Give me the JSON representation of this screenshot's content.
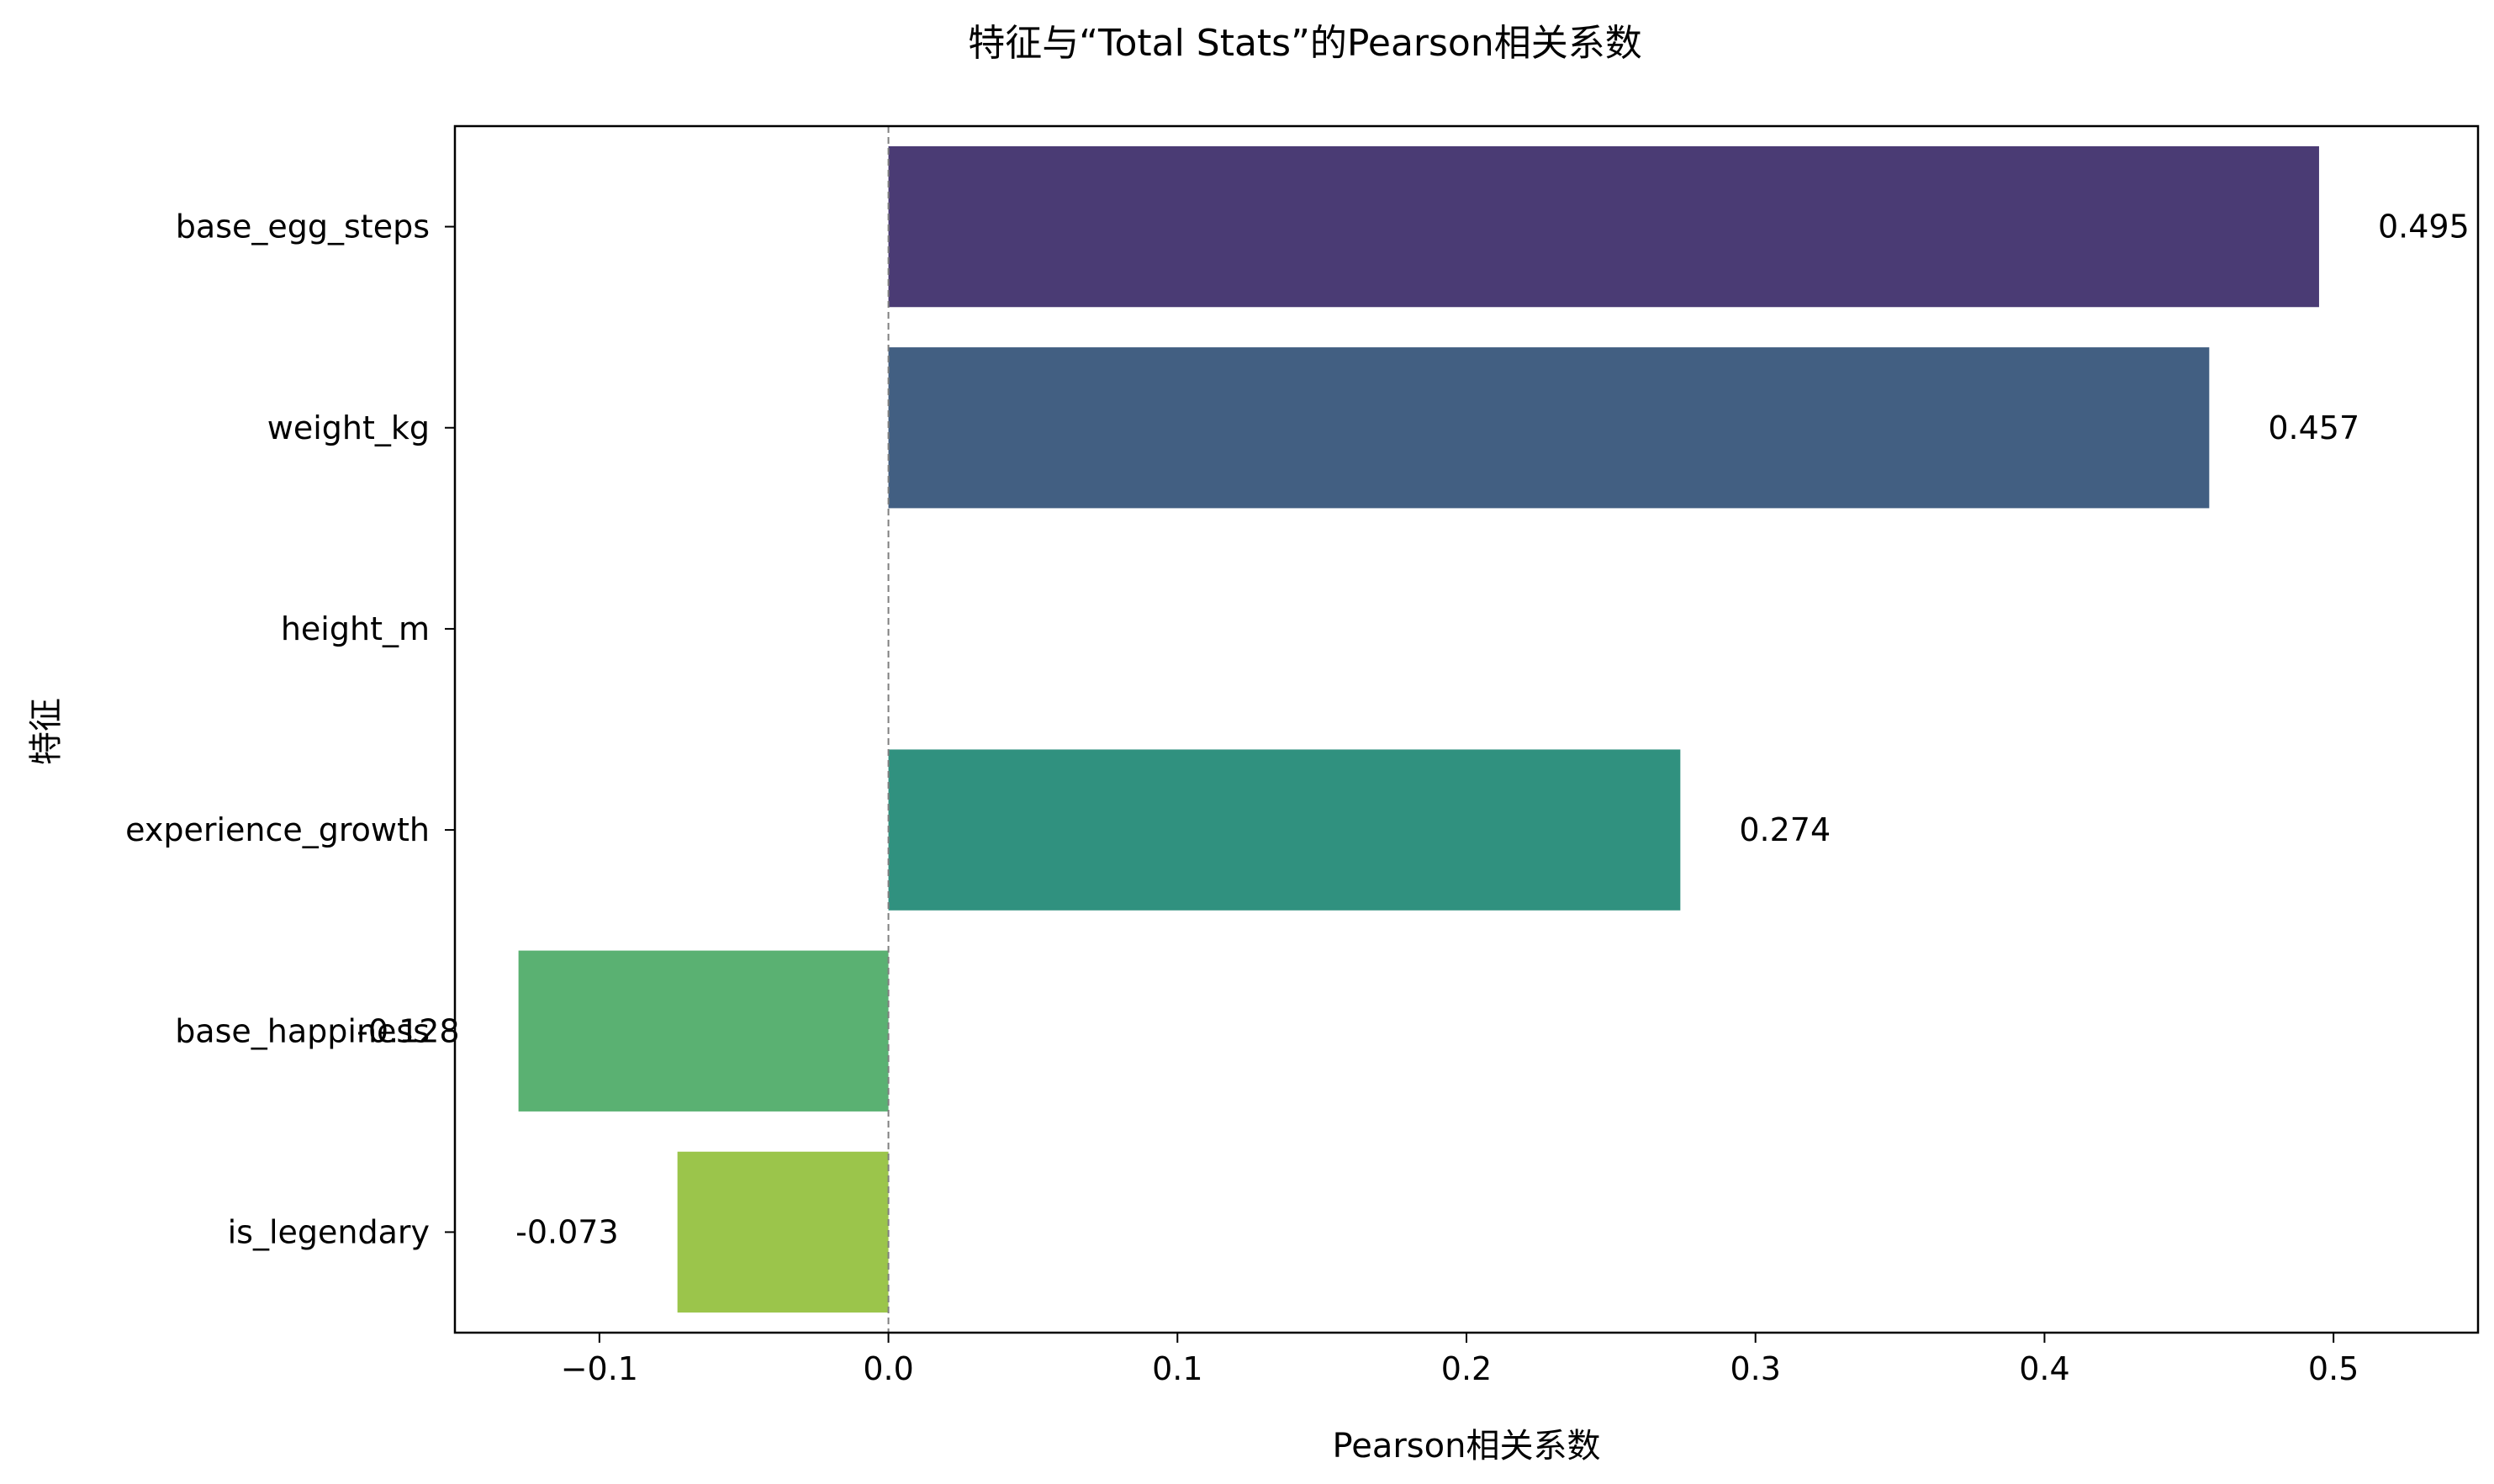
{
  "chart_data": {
    "type": "bar",
    "orientation": "horizontal",
    "title": "特征与“Total Stats”的Pearson相关系数",
    "xlabel": "Pearson相关系数",
    "ylabel": "特征",
    "categories": [
      "base_egg_steps",
      "weight_kg",
      "height_m",
      "experience_growth",
      "base_happiness",
      "is_legendary"
    ],
    "values": [
      0.495,
      0.457,
      null,
      0.274,
      -0.128,
      -0.073
    ],
    "data_labels": [
      "0.495",
      "0.457",
      "",
      "0.274",
      "-0.128",
      "-0.073"
    ],
    "colors": [
      "#4a3b74",
      "#425f82",
      "#38898b",
      "#30917f",
      "#5ab172",
      "#9bc54b"
    ],
    "xlim": [
      -0.15,
      0.55
    ],
    "xticks": [
      -0.1,
      0.0,
      0.1,
      0.2,
      0.3,
      0.4,
      0.5
    ],
    "xtick_labels": [
      "−0.1",
      "0.0",
      "0.1",
      "0.2",
      "0.3",
      "0.4",
      "0.5"
    ],
    "reference_line": 0.0,
    "grid": false,
    "legend": "none"
  }
}
